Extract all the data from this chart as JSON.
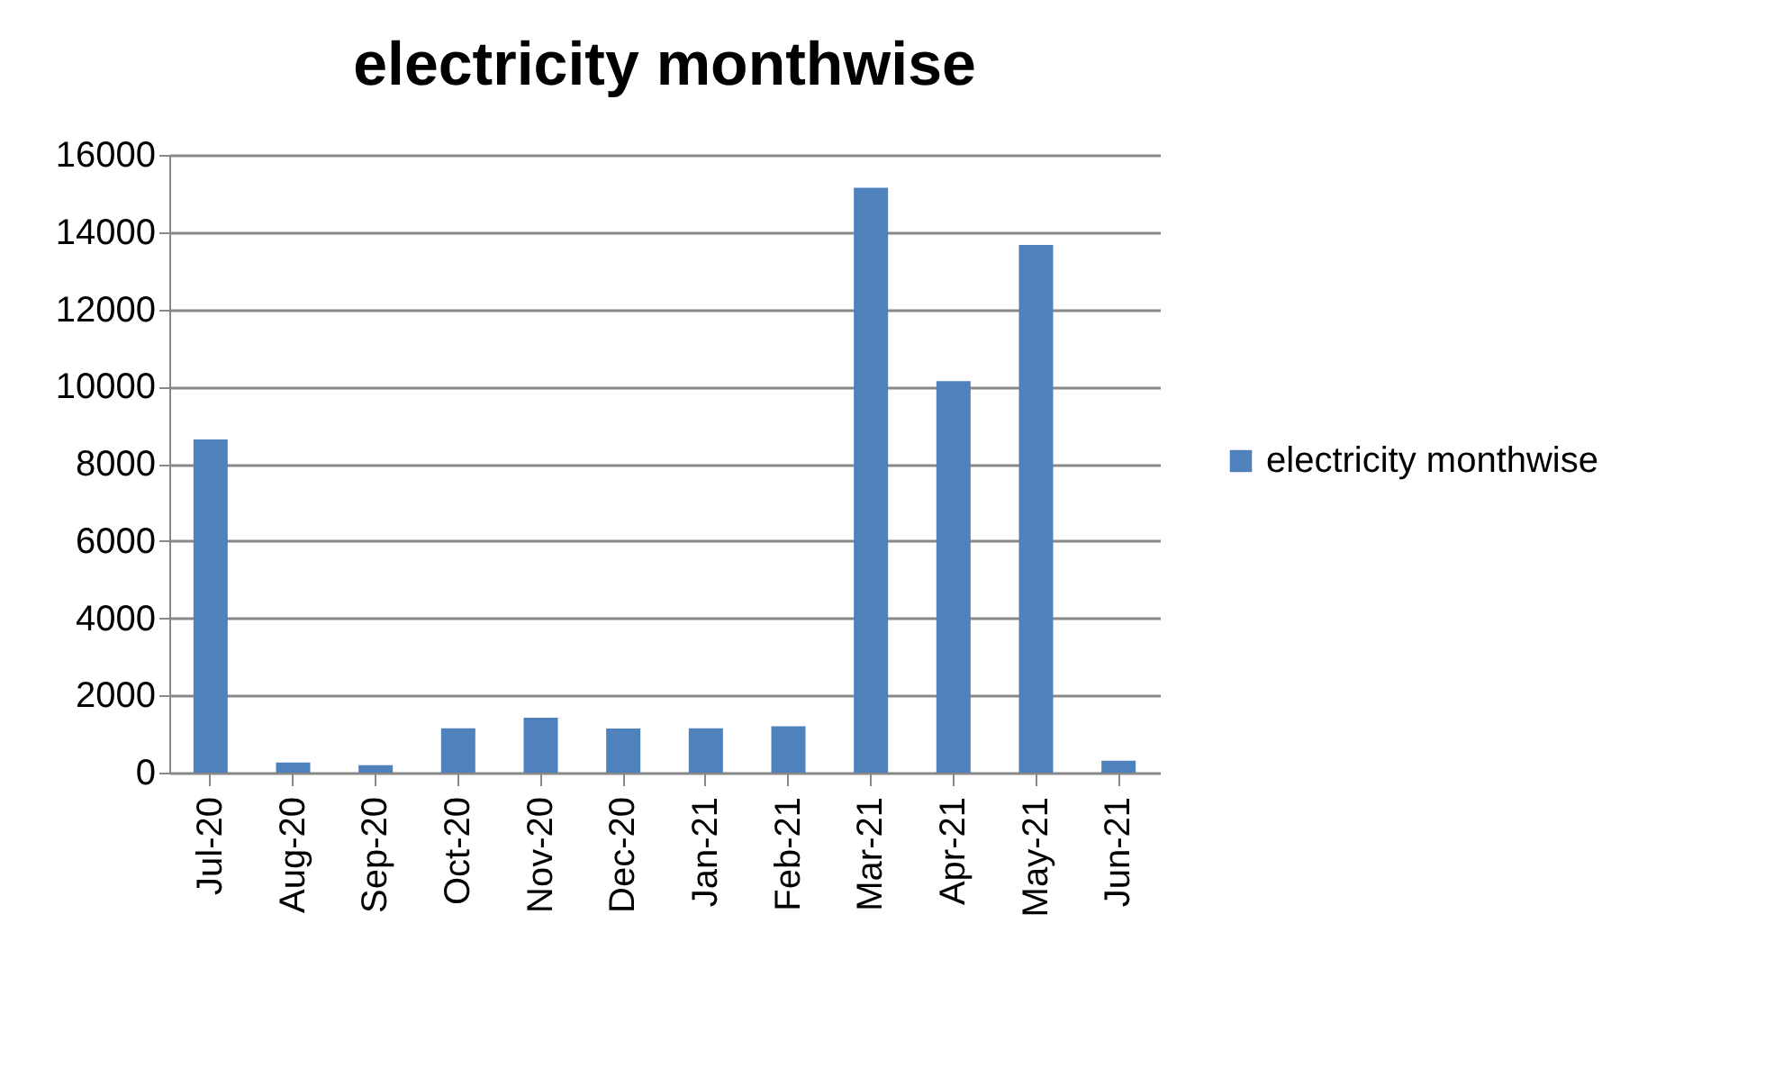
{
  "chart_data": {
    "type": "bar",
    "title": "electricity monthwise",
    "categories": [
      "Jul-20",
      "Aug-20",
      "Sep-20",
      "Oct-20",
      "Nov-20",
      "Dec-20",
      "Jan-21",
      "Feb-21",
      "Mar-21",
      "Apr-21",
      "May-21",
      "Jun-21"
    ],
    "series": [
      {
        "name": "electricity monthwise",
        "color": "#4f81bd",
        "values": [
          8630,
          260,
          190,
          1150,
          1420,
          1140,
          1150,
          1200,
          15150,
          10140,
          13670,
          310
        ]
      }
    ],
    "ylim": [
      0,
      16000
    ],
    "yticks": [
      0,
      2000,
      4000,
      6000,
      8000,
      10000,
      12000,
      14000,
      16000
    ],
    "grid": "y",
    "legend": "right"
  }
}
